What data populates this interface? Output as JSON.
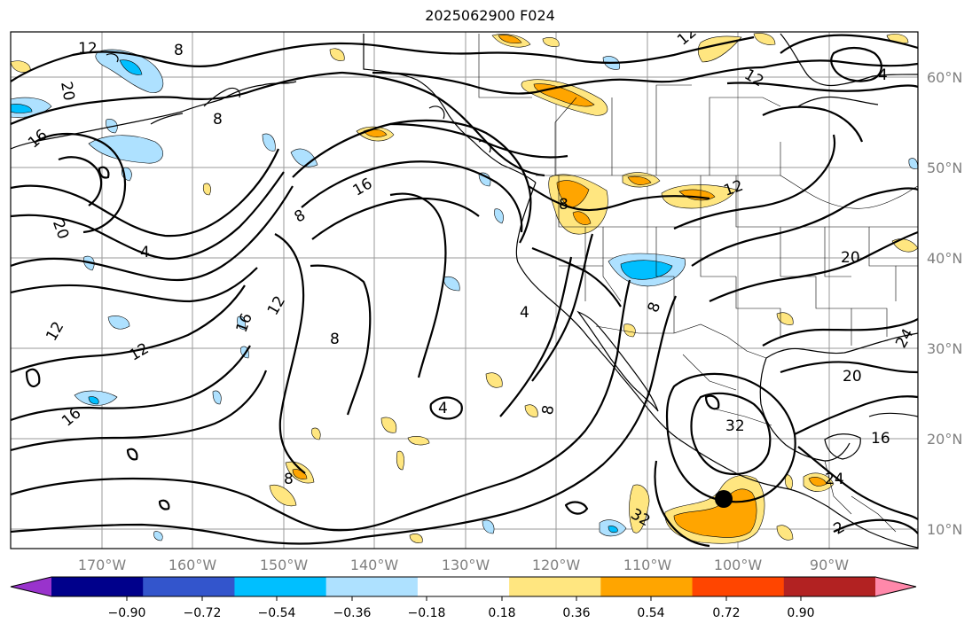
{
  "title": "2025062900 F024",
  "lon_labels": [
    "170°W",
    "160°W",
    "150°W",
    "140°W",
    "130°W",
    "120°W",
    "110°W",
    "100°W",
    "90°W"
  ],
  "lat_labels": [
    "60°N",
    "50°N",
    "40°N",
    "30°N",
    "20°N",
    "10°N"
  ],
  "colorbar": {
    "colors": [
      "#9933cc",
      "#00008b",
      "#3355cc",
      "#00bfff",
      "#aee1ff",
      "#ffffff",
      "#ffe680",
      "#ffa500",
      "#ff4500",
      "#b22222",
      "#ff88aa"
    ],
    "labels": [
      "−0.90",
      "−0.72",
      "−0.54",
      "−0.36",
      "−0.18",
      "0.18",
      "0.36",
      "0.54",
      "0.72",
      "0.90"
    ]
  },
  "contour_labels": [
    "12",
    "8",
    "20",
    "16",
    "4",
    "12",
    "8",
    "16",
    "8",
    "4",
    "12",
    "20",
    "12",
    "16",
    "8",
    "8",
    "16",
    "12",
    "8",
    "12",
    "8",
    "4",
    "8",
    "12",
    "20",
    "24",
    "20",
    "32",
    "16",
    "24",
    "2",
    "32",
    "4"
  ]
}
